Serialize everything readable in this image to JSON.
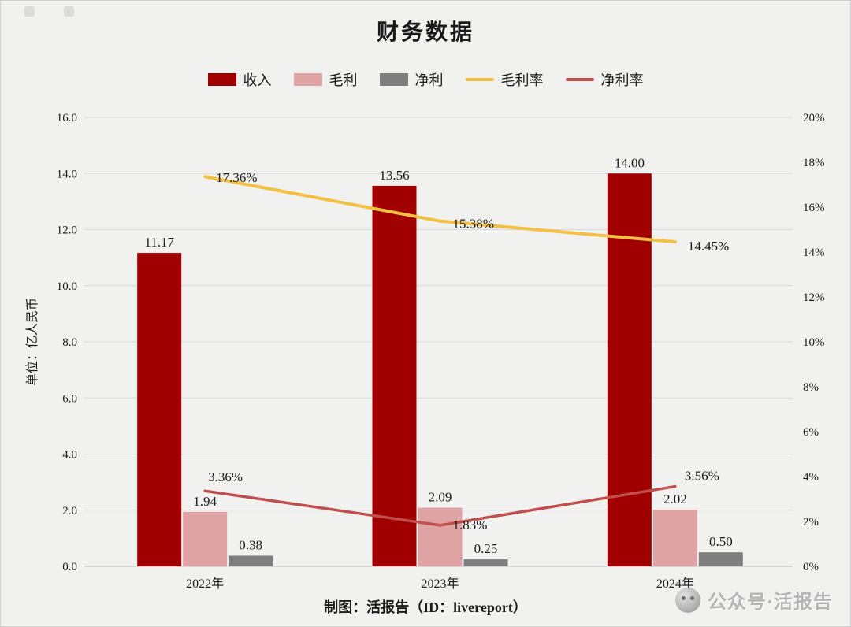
{
  "title": "财务数据",
  "caption": "制图：活报告（ID：livereport）",
  "watermark": "公众号·活报告",
  "colors": {
    "revenue": "#a00000",
    "gross_profit": "#dfa3a3",
    "net_profit": "#7f7f7f",
    "gross_margin": "#f2c144",
    "net_margin": "#c0504d",
    "background": "#f1f1f0",
    "gridline": "#d9d9d9",
    "axis_line": "#b9b9b9",
    "text": "#1a1a1a"
  },
  "chart_data": {
    "type": "bar+line combo",
    "title": "财务数据",
    "categories": [
      "2022年",
      "2023年",
      "2024年"
    ],
    "bar_series": [
      {
        "name": "收入",
        "color_key": "revenue",
        "values": [
          11.17,
          13.56,
          14.0
        ],
        "labels": [
          "11.17",
          "13.56",
          "14.00"
        ]
      },
      {
        "name": "毛利",
        "color_key": "gross_profit",
        "values": [
          1.94,
          2.09,
          2.02
        ],
        "labels": [
          "1.94",
          "2.09",
          "2.02"
        ]
      },
      {
        "name": "净利",
        "color_key": "net_profit",
        "values": [
          0.38,
          0.25,
          0.5
        ],
        "labels": [
          "0.38",
          "0.25",
          "0.50"
        ]
      }
    ],
    "line_series": [
      {
        "name": "毛利率",
        "color_key": "gross_margin",
        "axis": "right",
        "values": [
          17.36,
          15.38,
          14.45
        ],
        "labels": [
          "17.36%",
          "15.38%",
          "14.45%"
        ]
      },
      {
        "name": "净利率",
        "color_key": "net_margin",
        "axis": "right",
        "values": [
          3.36,
          1.83,
          3.56
        ],
        "labels": [
          "3.36%",
          "1.83%",
          "3.56%"
        ]
      }
    ],
    "left_axis": {
      "min": 0,
      "max": 16,
      "label": "单位：亿人民币",
      "ticks": [
        "0.0",
        "2.0",
        "4.0",
        "6.0",
        "8.0",
        "10.0",
        "12.0",
        "14.0",
        "16.0"
      ]
    },
    "right_axis": {
      "min": 0,
      "max": 20,
      "ticks": [
        "0%",
        "2%",
        "4%",
        "6%",
        "8%",
        "10%",
        "12%",
        "14%",
        "16%",
        "18%",
        "20%"
      ]
    },
    "legend_position": "top",
    "grid": "horizontal",
    "legend_items": [
      {
        "label": "收入",
        "type": "bar",
        "color_key": "revenue"
      },
      {
        "label": "毛利",
        "type": "bar",
        "color_key": "gross_profit"
      },
      {
        "label": "净利",
        "type": "bar",
        "color_key": "net_profit"
      },
      {
        "label": "毛利率",
        "type": "line",
        "color_key": "gross_margin"
      },
      {
        "label": "净利率",
        "type": "line",
        "color_key": "net_margin"
      }
    ]
  }
}
